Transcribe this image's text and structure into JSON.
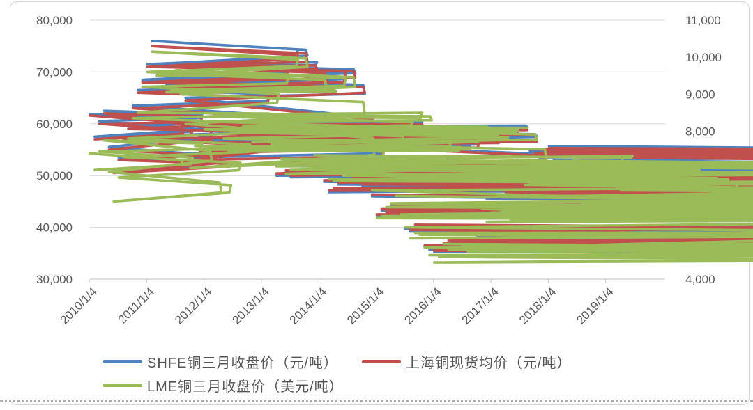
{
  "chart_data": {
    "type": "line",
    "title": "",
    "grid": "horizontal",
    "legend_position": "bottom",
    "x_start": "2010-01",
    "points_per_year": 12,
    "x_tick_labels": [
      "2010/1/4",
      "2011/1/4",
      "2012/1/4",
      "2013/1/4",
      "2014/1/4",
      "2015/1/4",
      "2016/1/4",
      "2017/1/4",
      "2018/1/4",
      "2019/1/4"
    ],
    "left_axis": {
      "min": 30000,
      "max": 80000,
      "tick_labels": [
        "80,000",
        "70,000",
        "60,000",
        "50,000",
        "40,000",
        "30,000"
      ]
    },
    "right_axis": {
      "min": 4000,
      "max": 11000,
      "tick_labels": [
        "11,000",
        "10,000",
        "9,000",
        "8,000",
        "7,000",
        "6,000",
        "5,000",
        "4,000"
      ]
    },
    "series": [
      {
        "key": "shfe",
        "name": "SHFE铜三月收盘价（元/吨）",
        "axis": "left",
        "color": "#4F81BD",
        "values": [
          61900,
          57500,
          60500,
          62500,
          55500,
          51000,
          53500,
          57500,
          59500,
          63500,
          66500,
          68500,
          71500,
          76000,
          71500,
          71500,
          67500,
          67500,
          71500,
          68500,
          65000,
          53500,
          57000,
          55000,
          59500,
          60500,
          60000,
          58500,
          56500,
          55500,
          56500,
          55000,
          58500,
          58000,
          56500,
          57500,
          59500,
          59000,
          56500,
          50000,
          52200,
          50700,
          49700,
          52200,
          51800,
          51800,
          50800,
          51800,
          50300,
          48800,
          46800,
          47300,
          48300,
          48800,
          50000,
          49500,
          49000,
          48000,
          47000,
          46000,
          42200,
          43200,
          42700,
          44200,
          43700,
          42200,
          39700,
          39200,
          40200,
          39200,
          36200,
          35700,
          35300,
          36000,
          36800,
          37300,
          35300,
          36300,
          37300,
          36600,
          37300,
          38300,
          49300,
          45500,
          46000,
          47500,
          47000,
          46500,
          45500,
          46500,
          49500,
          52000,
          54800,
          54000,
          53500,
          54500,
          55700,
          53000,
          51000,
          51500,
          51500,
          54300,
          49500,
          48500,
          49000,
          50000,
          49500,
          48500,
          47500,
          49000,
          49000,
          48500,
          47000,
          46500,
          47000,
          46000,
          47000,
          46800,
          47200,
          49900
        ]
      },
      {
        "key": "spot",
        "name": "上海铜现货均价（元/吨）",
        "axis": "left",
        "color": "#C0504D",
        "values": [
          61600,
          57000,
          60000,
          62000,
          55000,
          50500,
          53000,
          57000,
          59000,
          63000,
          66000,
          68000,
          71000,
          75000,
          71000,
          71000,
          67000,
          67000,
          71000,
          68000,
          64500,
          53000,
          56500,
          54500,
          59000,
          60000,
          59500,
          58000,
          56000,
          55000,
          56000,
          54500,
          58000,
          57500,
          56000,
          57200,
          59200,
          58700,
          56200,
          50400,
          52500,
          51000,
          50000,
          52500,
          52100,
          52100,
          51100,
          52100,
          50600,
          49100,
          47100,
          47600,
          48600,
          49100,
          50300,
          49800,
          49300,
          48300,
          47300,
          46300,
          42500,
          43500,
          43000,
          44500,
          44000,
          42500,
          40000,
          39500,
          40500,
          39500,
          36500,
          36000,
          35500,
          36200,
          37000,
          37500,
          35500,
          36500,
          37500,
          36800,
          37500,
          38500,
          49000,
          45800,
          46300,
          47800,
          47300,
          46800,
          45800,
          46800,
          49800,
          52300,
          55100,
          54300,
          53800,
          54800,
          55300,
          53600,
          51600,
          52100,
          52100,
          54000,
          50100,
          49100,
          49600,
          50600,
          50100,
          49100,
          48200,
          49700,
          49700,
          49200,
          47700,
          47200,
          47700,
          46700,
          47700,
          47500,
          47900,
          49600
        ]
      },
      {
        "key": "lme",
        "name": "LME铜三月收盘价（美元/吨）",
        "axis": "right",
        "color": "#9BBB59",
        "values": [
          7400,
          6950,
          7450,
          7750,
          6900,
          6100,
          6750,
          7300,
          7800,
          8350,
          8500,
          9200,
          9600,
          10150,
          9500,
          9550,
          9050,
          9100,
          9650,
          9000,
          8200,
          7000,
          7600,
          7500,
          8050,
          8400,
          8450,
          8250,
          7800,
          7450,
          7600,
          7500,
          8150,
          8000,
          7700,
          7950,
          8050,
          8100,
          7650,
          7050,
          7250,
          6850,
          6950,
          7200,
          7150,
          7200,
          7000,
          7350,
          7250,
          7100,
          6700,
          6650,
          6850,
          6800,
          7050,
          6950,
          6800,
          6700,
          6650,
          6400,
          5650,
          5700,
          5950,
          6050,
          6250,
          5750,
          5400,
          5100,
          5250,
          5200,
          4850,
          4650,
          4450,
          4600,
          4950,
          4800,
          4650,
          4650,
          4900,
          4750,
          4750,
          4850,
          5900,
          5550,
          5800,
          6000,
          5850,
          5700,
          5600,
          5750,
          6250,
          6550,
          6600,
          6900,
          6800,
          7050,
          7100,
          7050,
          6800,
          6850,
          6850,
          7200,
          6250,
          6050,
          6100,
          6250,
          6200,
          6100,
          5900,
          6250,
          6450,
          6400,
          6050,
          5900,
          5950,
          5700,
          5750,
          5800,
          5850,
          6150
        ]
      }
    ],
    "style": {
      "gridline_color": "#d9d9d9",
      "axisline_color": "#bfbfbf",
      "tick_text_color": "#595959"
    }
  },
  "legend": {
    "rows": [
      [
        0,
        1
      ],
      [
        2
      ]
    ]
  }
}
